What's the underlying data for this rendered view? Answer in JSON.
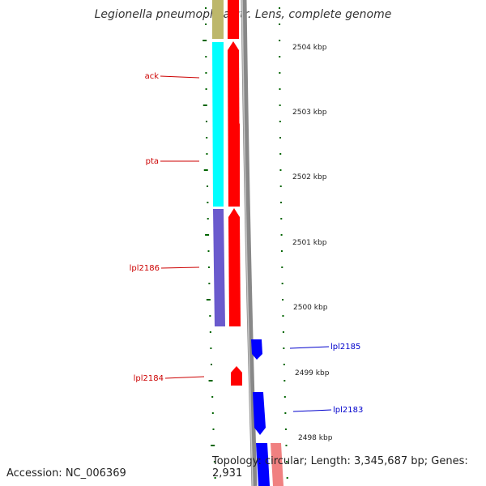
{
  "title": "Legionella pneumophila str. Lens, complete genome",
  "footer": {
    "accession": "Accession: NC_006369",
    "summary": "Topology: circular; Length: 3,345,687 bp; Genes: 2,931"
  },
  "scale": {
    "unit": "kbp",
    "ticks": [
      {
        "label": "2504 kbp",
        "kbp": 2504
      },
      {
        "label": "2503 kbp",
        "kbp": 2503
      },
      {
        "label": "2502 kbp",
        "kbp": 2502
      },
      {
        "label": "2501 kbp",
        "kbp": 2501
      },
      {
        "label": "2500 kbp",
        "kbp": 2500
      },
      {
        "label": "2499 kbp",
        "kbp": 2499
      },
      {
        "label": "2498 kbp",
        "kbp": 2498
      }
    ]
  },
  "gene_labels": [
    {
      "label": "ack",
      "strand": "minus"
    },
    {
      "label": "pta",
      "strand": "minus"
    },
    {
      "label": "lpl2186",
      "strand": "minus"
    },
    {
      "label": "lpl2184",
      "strand": "minus"
    },
    {
      "label": "lpl2185",
      "strand": "plus"
    },
    {
      "label": "lpl2183",
      "strand": "plus"
    }
  ],
  "colors": {
    "minus_strand_gene": "#ff0000",
    "plus_strand_gene": "#0000ff",
    "label_minus": "#cc0000",
    "label_plus": "#0000cc",
    "cog_olive": "#bdb76b",
    "cog_cyan": "#00ffff",
    "cog_slate": "#6a5acd",
    "cog_pink": "#f08080",
    "backbone": "#888888",
    "tick": "#006400"
  }
}
